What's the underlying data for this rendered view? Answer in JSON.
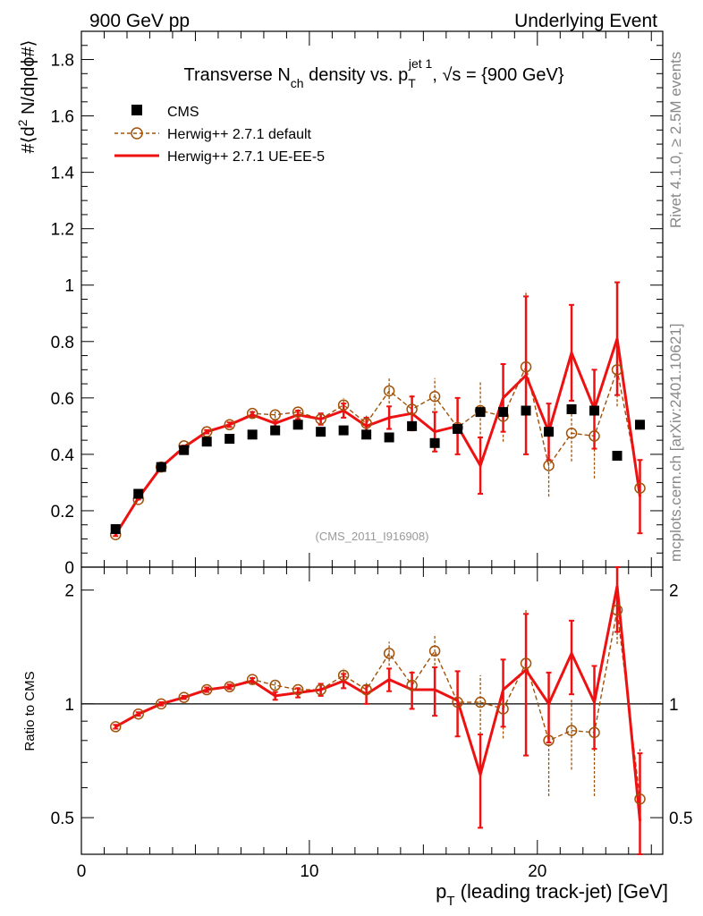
{
  "header": {
    "left": "900 GeV pp",
    "right": "Underlying Event"
  },
  "side_labels": {
    "upper": "Rivet 4.1.0, ≥ 2.5M events",
    "lower": "mcplots.cern.ch [arXiv:2401.10621]"
  },
  "chart_data": {
    "type": "scatter",
    "title": "Transverse N_ch density vs. p_T^jet 1, √s = {900 GeV}",
    "title_parts": {
      "a": "Transverse N",
      "sub1": "ch",
      "b": " density vs. p",
      "sub2": "T",
      "sup2": "jet 1",
      "c": ", √s = {900 GeV}"
    },
    "ylabel": "#⟨d² N/dηdϕ#⟩",
    "ylabel_parts": {
      "a": "#⟨d",
      "sup": "2",
      "b": " N/dηdϕ#⟩"
    },
    "ratio_ylabel": "Ratio to CMS",
    "xlabel": "p_T (leading track-jet) [GeV]",
    "xlabel_parts": {
      "a": "p",
      "sub": "T",
      "b": " (leading track-jet) [GeV]"
    },
    "watermark": "(CMS_2011_I916908)",
    "xlim": [
      0,
      25.5
    ],
    "ylim": [
      0,
      1.9
    ],
    "ratio_ylim": [
      0.4,
      2.3
    ],
    "x_ticks": [
      "0",
      "10",
      "20"
    ],
    "y_ticks": [
      "0",
      "0.2",
      "0.4",
      "0.6",
      "0.8",
      "1",
      "1.2",
      "1.4",
      "1.6",
      "1.8"
    ],
    "ratio_ticks": [
      "0.5",
      "1",
      "2"
    ],
    "legend": [
      "CMS",
      "Herwig++ 2.7.1 default",
      "Herwig++ 2.7.1 UE-EE-5"
    ],
    "colors": {
      "cms": "#000000",
      "default": "#a0520a",
      "ue": "#ee1111"
    },
    "x": [
      1.5,
      2.5,
      3.5,
      4.5,
      5.5,
      6.5,
      7.5,
      8.5,
      9.5,
      10.5,
      11.5,
      12.5,
      13.5,
      14.5,
      15.5,
      16.5,
      17.5,
      18.5,
      19.5,
      20.5,
      21.5,
      22.5,
      23.5,
      24.5
    ],
    "series": [
      {
        "name": "CMS",
        "values": [
          0.135,
          0.26,
          0.355,
          0.415,
          0.445,
          0.455,
          0.47,
          0.485,
          0.505,
          0.48,
          0.485,
          0.47,
          0.46,
          0.5,
          0.44,
          0.49,
          0.55,
          0.55,
          0.555,
          0.48,
          0.56,
          0.555,
          0.395,
          0.505
        ]
      },
      {
        "name": "Herwig++ 2.7.1 default",
        "values": [
          0.115,
          0.24,
          0.355,
          0.43,
          0.48,
          0.505,
          0.545,
          0.54,
          0.55,
          0.525,
          0.575,
          0.51,
          0.625,
          0.56,
          0.605,
          0.495,
          0.555,
          0.535,
          0.71,
          0.36,
          0.475,
          0.465,
          0.7,
          0.28
        ],
        "errors": [
          0.005,
          0.005,
          0.005,
          0.006,
          0.006,
          0.008,
          0.01,
          0.012,
          0.015,
          0.02,
          0.025,
          0.03,
          0.045,
          0.05,
          0.065,
          0.07,
          0.1,
          0.09,
          0.27,
          0.11,
          0.1,
          0.15,
          0.13,
          0.1
        ]
      },
      {
        "name": "Herwig++ 2.7.1 UE-EE-5",
        "values": [
          0.115,
          0.245,
          0.355,
          0.425,
          0.48,
          0.505,
          0.54,
          0.51,
          0.54,
          0.525,
          0.555,
          0.5,
          0.53,
          0.545,
          0.48,
          0.5,
          0.36,
          0.6,
          0.68,
          0.48,
          0.76,
          0.56,
          0.81,
          0.25
        ],
        "errors": [
          0.005,
          0.005,
          0.005,
          0.006,
          0.006,
          0.008,
          0.01,
          0.012,
          0.015,
          0.02,
          0.025,
          0.03,
          0.04,
          0.06,
          0.07,
          0.1,
          0.1,
          0.12,
          0.28,
          0.1,
          0.17,
          0.14,
          0.2,
          0.13
        ]
      }
    ],
    "ratios": [
      {
        "name": "Herwig++ 2.7.1 default",
        "values": [
          0.87,
          0.94,
          1.0,
          1.04,
          1.09,
          1.11,
          1.16,
          1.12,
          1.09,
          1.09,
          1.19,
          1.09,
          1.36,
          1.12,
          1.38,
          1.01,
          1.01,
          0.97,
          1.28,
          0.8,
          0.85,
          0.84,
          1.77,
          0.56
        ],
        "errors": [
          0.01,
          0.01,
          0.01,
          0.01,
          0.015,
          0.015,
          0.02,
          0.025,
          0.03,
          0.04,
          0.05,
          0.06,
          0.1,
          0.1,
          0.15,
          0.15,
          0.18,
          0.16,
          0.49,
          0.23,
          0.18,
          0.27,
          0.33,
          0.2
        ]
      },
      {
        "name": "Herwig++ 2.7.1 UE-EE-5",
        "values": [
          0.87,
          0.94,
          1.0,
          1.04,
          1.09,
          1.11,
          1.15,
          1.05,
          1.07,
          1.09,
          1.15,
          1.06,
          1.16,
          1.09,
          1.09,
          1.02,
          0.65,
          1.09,
          1.23,
          1.0,
          1.36,
          1.01,
          2.05,
          0.49
        ],
        "errors": [
          0.01,
          0.01,
          0.01,
          0.01,
          0.015,
          0.015,
          0.02,
          0.025,
          0.03,
          0.04,
          0.05,
          0.06,
          0.08,
          0.12,
          0.16,
          0.2,
          0.18,
          0.22,
          0.5,
          0.21,
          0.3,
          0.25,
          0.5,
          0.25
        ]
      }
    ]
  }
}
